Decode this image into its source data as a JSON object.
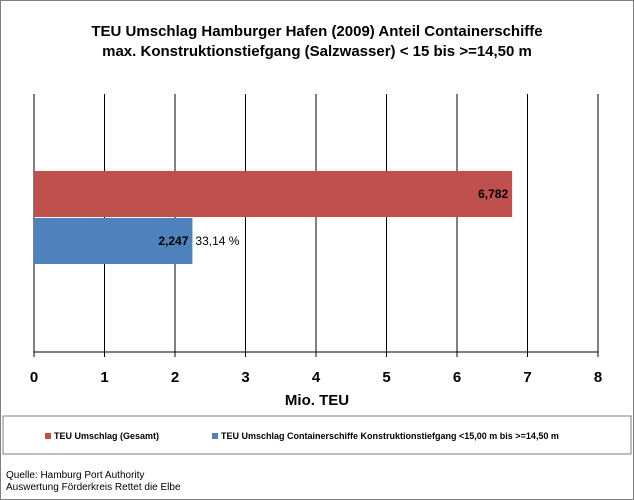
{
  "chart_data": {
    "type": "bar",
    "orientation": "horizontal",
    "title": [
      "TEU Umschlag Hamburger Hafen (2009)  Anteil  Containerschiffe",
      "max. Konstruktionstiefgang (Salzwasser) < 15 bis >=14,50 m"
    ],
    "xlabel": "Mio. TEU",
    "ylabel": "",
    "xlim": [
      0,
      8
    ],
    "xticks": [
      "0",
      "1",
      "2",
      "3",
      "4",
      "5",
      "6",
      "7",
      "8"
    ],
    "grid": "vertical",
    "legend_position": "bottom",
    "series": [
      {
        "name": "TEU Umschlag (Gesamt)",
        "values": [
          6.782
        ],
        "value_labels": [
          "6,782"
        ],
        "color": "#C0504D"
      },
      {
        "name": "TEU Umschlag Containerschiffe Konstruktionstiefgang <15,00 m bis >=14,50 m",
        "values": [
          2.247
        ],
        "value_labels": [
          "2,247"
        ],
        "color": "#4F81BD"
      }
    ],
    "annotations": [
      "33,14 %"
    ]
  },
  "source": {
    "line1": "Quelle: Hamburg Port Authority",
    "line2": "Auswertung Förderkreis Rettet die Elbe"
  }
}
